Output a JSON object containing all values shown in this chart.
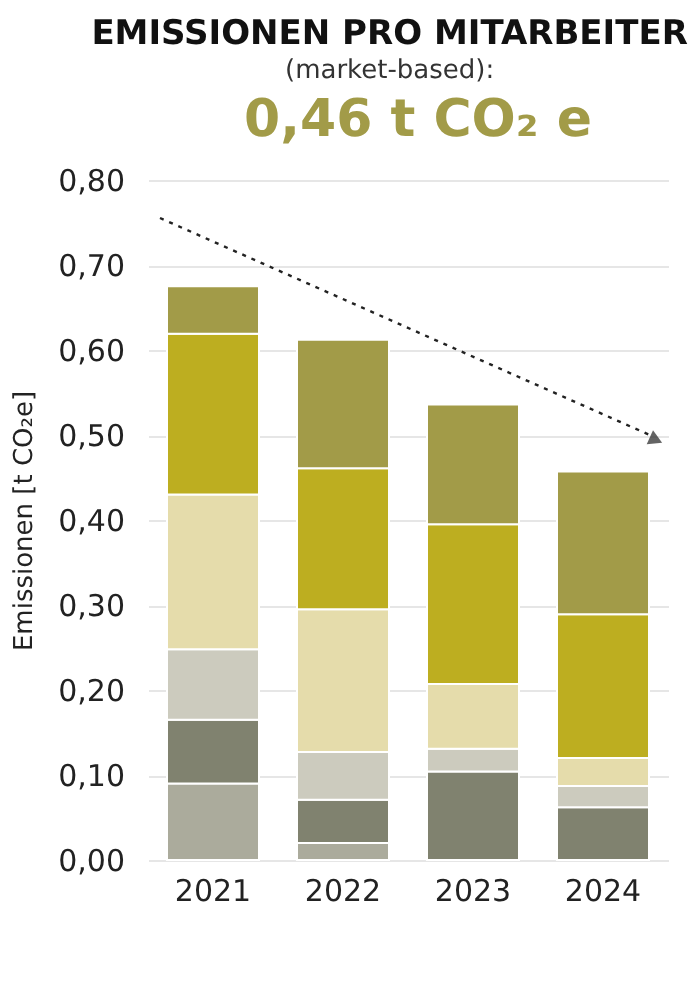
{
  "chart_data": {
    "type": "bar",
    "title": "EMISSIONEN PRO MITARBEITER",
    "subtitle": "(market-based):",
    "annotations": [
      "0,46 t CO₂ e"
    ],
    "ylabel": "Emissionen [t CO₂e]",
    "categories": [
      "2021",
      "2022",
      "2023",
      "2024"
    ],
    "stacked": true,
    "series": [
      {
        "color": "#abab9c",
        "values": [
          0.09,
          0.02,
          0,
          0
        ]
      },
      {
        "color": "#80826f",
        "values": [
          0.075,
          0.051,
          0.104,
          0.062
        ]
      },
      {
        "color": "#cccbbe",
        "values": [
          0.083,
          0.056,
          0.027,
          0.025
        ]
      },
      {
        "color": "#e5dcab",
        "values": [
          0.182,
          0.168,
          0.076,
          0.033
        ]
      },
      {
        "color": "#bdae20",
        "values": [
          0.189,
          0.166,
          0.188,
          0.169
        ]
      },
      {
        "color": "#a29b48",
        "values": [
          0.056,
          0.151,
          0.141,
          0.168
        ]
      }
    ],
    "ylim": [
      0,
      0.8
    ],
    "yticks": [
      {
        "value": 0,
        "label": "0,00"
      },
      {
        "value": 0.1,
        "label": "0,10"
      },
      {
        "value": 0.2,
        "label": "0,20"
      },
      {
        "value": 0.3,
        "label": "0,30"
      },
      {
        "value": 0.4,
        "label": "0,40"
      },
      {
        "value": 0.5,
        "label": "0,50"
      },
      {
        "value": 0.6,
        "label": "0,60"
      },
      {
        "value": 0.7,
        "label": "0,70"
      },
      {
        "value": 0.8,
        "label": "0,80"
      }
    ],
    "grid": "y",
    "legend": false
  }
}
